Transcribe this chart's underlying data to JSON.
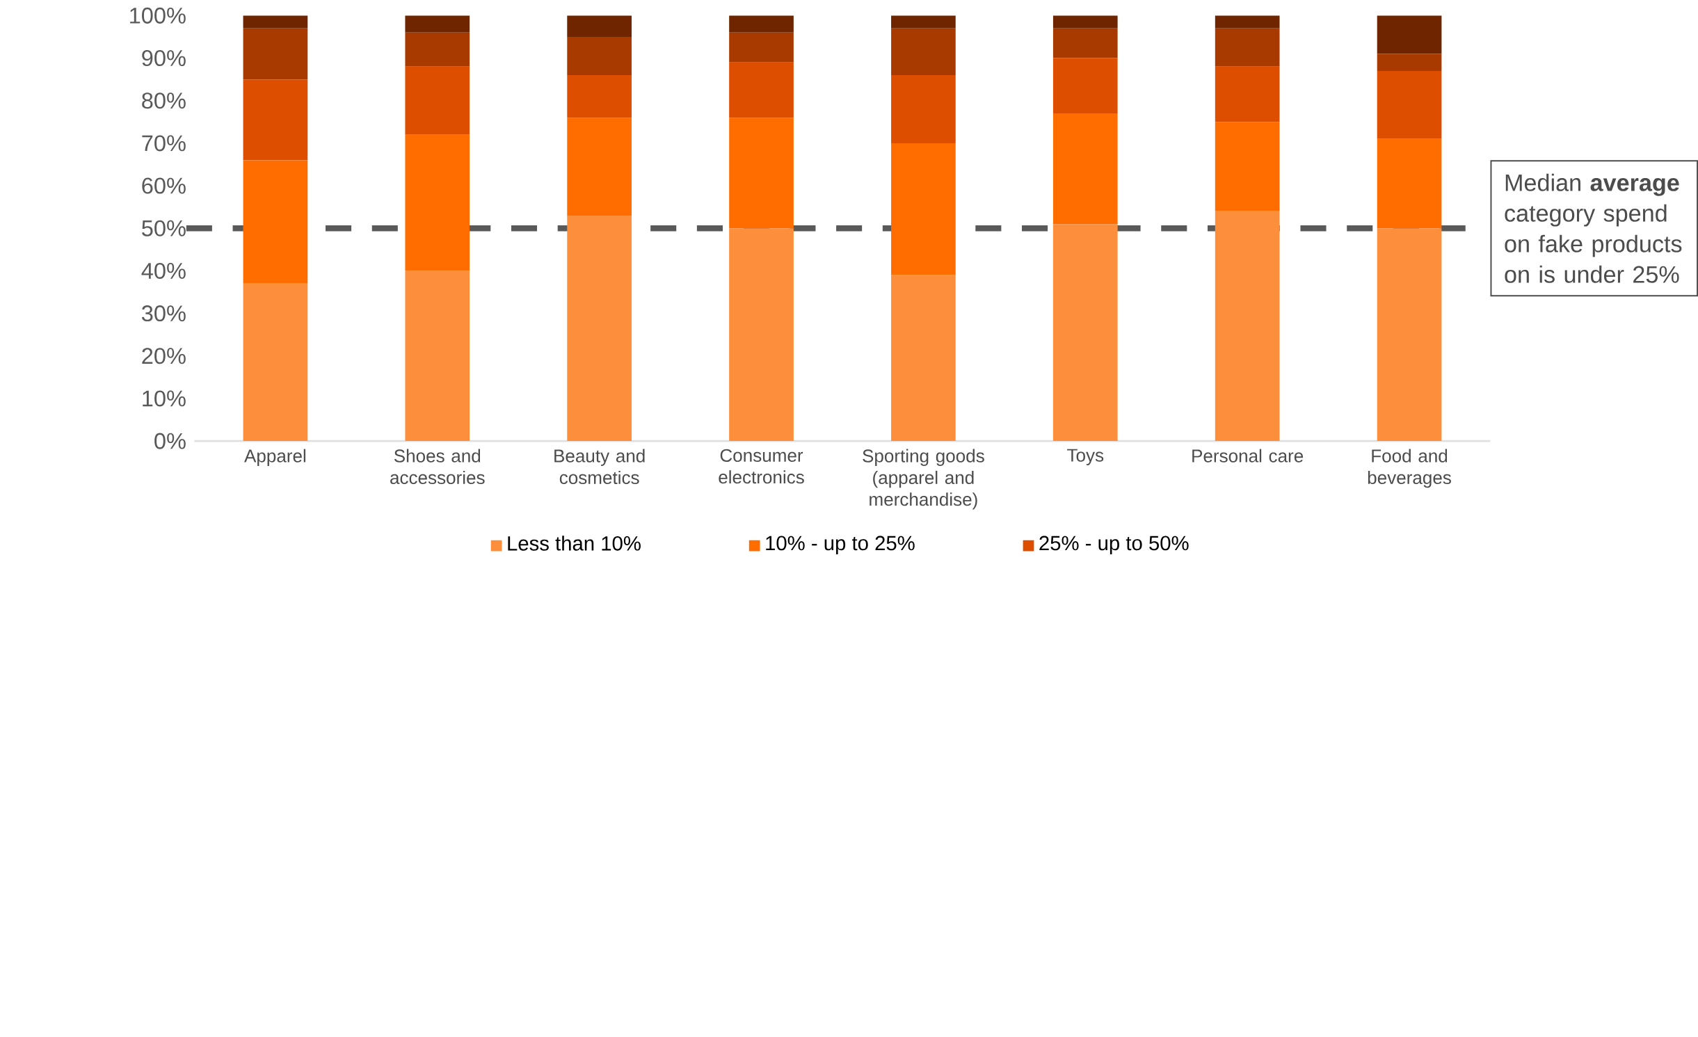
{
  "chart_data": {
    "type": "bar",
    "stacked": true,
    "categories": [
      "Apparel",
      "Shoes and accessories",
      "Beauty and cosmetics",
      "Consumer electronics",
      "Sporting goods (apparel and merchandise)",
      "Toys",
      "Personal care",
      "Food and beverages"
    ],
    "series": [
      {
        "name": "Less than 10%",
        "color": "#fd8f3c",
        "values": [
          37,
          40,
          53,
          50,
          39,
          51,
          54,
          50
        ]
      },
      {
        "name": "10% - up to 25%",
        "color": "#ff6d00",
        "values": [
          29,
          32,
          23,
          26,
          31,
          26,
          21,
          21
        ]
      },
      {
        "name": "25% - up to 50%",
        "color": "#dd4e00",
        "values": [
          19,
          16,
          10,
          13,
          16,
          13,
          13,
          16
        ]
      },
      {
        "color": "#a83a00",
        "values": [
          12,
          8,
          9,
          7,
          11,
          7,
          9,
          4
        ]
      },
      {
        "color": "#6e2500",
        "values": [
          3,
          4,
          5,
          4,
          3,
          3,
          3,
          9
        ]
      }
    ],
    "ylim": [
      0,
      100
    ],
    "yticks": [
      {
        "value": 0,
        "label": "0%"
      },
      {
        "value": 10,
        "label": "10%"
      },
      {
        "value": 20,
        "label": "20%"
      },
      {
        "value": 30,
        "label": "30%"
      },
      {
        "value": 40,
        "label": "40%"
      },
      {
        "value": 50,
        "label": "50%"
      },
      {
        "value": 60,
        "label": "60%"
      },
      {
        "value": 70,
        "label": "70%"
      },
      {
        "value": 80,
        "label": "80%"
      },
      {
        "value": 90,
        "label": "90%"
      },
      {
        "value": 100,
        "label": "100%"
      }
    ],
    "ref_lines": [
      {
        "axis": "y",
        "value": 50,
        "color": "#595959",
        "line_style": "dashed"
      }
    ],
    "annotations": [
      "Median **average** category spend on fake products on is under 25%"
    ],
    "legend": "bottom",
    "grid": false
  }
}
